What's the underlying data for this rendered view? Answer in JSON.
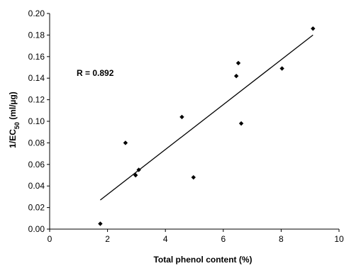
{
  "chart_data": {
    "type": "scatter",
    "xlabel": "Total phenol content (%)",
    "ylabel_main": "1/EC",
    "ylabel_sub": "50",
    "ylabel_unit": " (ml/µg)",
    "xlim": [
      0,
      10
    ],
    "ylim": [
      0,
      0.2
    ],
    "xticks": [
      "0",
      "2",
      "4",
      "6",
      "8",
      "10"
    ],
    "yticks": [
      "0.00",
      "0.02",
      "0.04",
      "0.06",
      "0.08",
      "0.10",
      "0.12",
      "0.14",
      "0.16",
      "0.18",
      "0.20"
    ],
    "grid": false,
    "annotation": "R = 0.892",
    "points": [
      {
        "x": 1.75,
        "y": 0.005
      },
      {
        "x": 2.62,
        "y": 0.08
      },
      {
        "x": 2.97,
        "y": 0.05
      },
      {
        "x": 3.08,
        "y": 0.055
      },
      {
        "x": 4.57,
        "y": 0.104
      },
      {
        "x": 4.97,
        "y": 0.048
      },
      {
        "x": 6.45,
        "y": 0.142
      },
      {
        "x": 6.52,
        "y": 0.154
      },
      {
        "x": 6.62,
        "y": 0.098
      },
      {
        "x": 8.03,
        "y": 0.149
      },
      {
        "x": 9.1,
        "y": 0.186
      }
    ],
    "trendline": [
      {
        "x": 1.75,
        "y": 0.027
      },
      {
        "x": 9.1,
        "y": 0.18
      }
    ],
    "marker_color": "#000000"
  }
}
